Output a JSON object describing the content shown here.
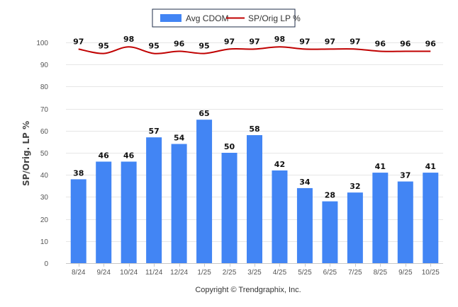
{
  "copyright": "Copyright © Trendgraphix, Inc.",
  "chart_data": {
    "type": "bar",
    "ylabel": "SP/Orig. LP %",
    "xlabel": "",
    "title": "",
    "ylim": [
      0,
      100
    ],
    "yticks": [
      0,
      10,
      20,
      30,
      40,
      50,
      60,
      70,
      80,
      90,
      100
    ],
    "grid": true,
    "legend_position": "top-center",
    "categories": [
      "8/24",
      "9/24",
      "10/24",
      "11/24",
      "12/24",
      "1/25",
      "2/25",
      "3/25",
      "4/25",
      "5/25",
      "6/25",
      "7/25",
      "8/25",
      "9/25",
      "10/25"
    ],
    "series": [
      {
        "name": "Avg CDOM",
        "type": "bar",
        "color": "#4285f4",
        "values": [
          38,
          46,
          46,
          57,
          54,
          65,
          50,
          58,
          42,
          34,
          28,
          32,
          41,
          37,
          41
        ]
      },
      {
        "name": "SP/Orig LP %",
        "type": "line",
        "color": "#c00000",
        "values": [
          97,
          95,
          98,
          95,
          96,
          95,
          97,
          97,
          98,
          97,
          97,
          97,
          96,
          96,
          96
        ]
      }
    ]
  }
}
